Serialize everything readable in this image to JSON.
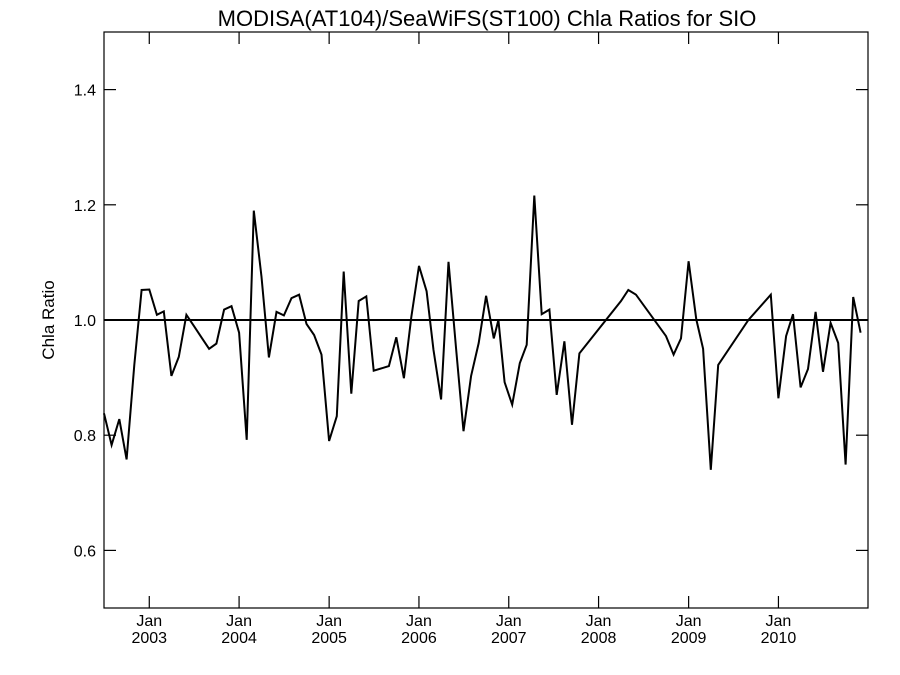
{
  "chart_data": {
    "type": "line",
    "title": "MODISA(AT104)/SeaWiFS(ST100)  Chla Ratios for SIO",
    "xlabel": "",
    "ylabel": "Chla Ratio",
    "xlim": [
      "2002-07-01",
      "2010-12-31"
    ],
    "ylim": [
      0.5,
      1.5
    ],
    "yticks": [
      0.6,
      0.8,
      1.0,
      1.2,
      1.4
    ],
    "ytick_labels": [
      "0.6",
      "0.8",
      "1.0",
      "1.2",
      "1.4"
    ],
    "xticks": [
      {
        "month": "Jan",
        "year": "2003",
        "date": "2003-01-01"
      },
      {
        "month": "Jan",
        "year": "2004",
        "date": "2004-01-01"
      },
      {
        "month": "Jan",
        "year": "2005",
        "date": "2005-01-01"
      },
      {
        "month": "Jan",
        "year": "2006",
        "date": "2006-01-01"
      },
      {
        "month": "Jan",
        "year": "2007",
        "date": "2007-01-01"
      },
      {
        "month": "Jan",
        "year": "2008",
        "date": "2008-01-01"
      },
      {
        "month": "Jan",
        "year": "2009",
        "date": "2009-01-01"
      },
      {
        "month": "Jan",
        "year": "2010",
        "date": "2010-01-01"
      }
    ],
    "reference_line": 1.0,
    "grid": false,
    "series": [
      {
        "color": "#000000",
        "points": [
          [
            "2002-07-01",
            0.838
          ],
          [
            "2002-08-01",
            0.783
          ],
          [
            "2002-09-01",
            0.828
          ],
          [
            "2002-10-01",
            0.758
          ],
          [
            "2002-11-01",
            0.922
          ],
          [
            "2002-12-01",
            1.052
          ],
          [
            "2003-01-01",
            1.053
          ],
          [
            "2003-02-01",
            1.009
          ],
          [
            "2003-03-01",
            1.015
          ],
          [
            "2003-04-01",
            0.903
          ],
          [
            "2003-05-01",
            0.936
          ],
          [
            "2003-06-01",
            1.009
          ],
          [
            "2003-07-01",
            0.99
          ],
          [
            "2003-08-01",
            0.97
          ],
          [
            "2003-09-01",
            0.95
          ],
          [
            "2003-10-01",
            0.959
          ],
          [
            "2003-11-01",
            1.018
          ],
          [
            "2003-12-01",
            1.024
          ],
          [
            "2004-01-01",
            0.978
          ],
          [
            "2004-02-01",
            0.792
          ],
          [
            "2004-03-01",
            1.19
          ],
          [
            "2004-04-01",
            1.075
          ],
          [
            "2004-05-01",
            0.935
          ],
          [
            "2004-06-01",
            1.014
          ],
          [
            "2004-07-01",
            1.008
          ],
          [
            "2004-08-01",
            1.038
          ],
          [
            "2004-09-01",
            1.044
          ],
          [
            "2004-10-01",
            0.993
          ],
          [
            "2004-11-01",
            0.974
          ],
          [
            "2004-12-01",
            0.94
          ],
          [
            "2005-01-01",
            0.79
          ],
          [
            "2005-02-01",
            0.833
          ],
          [
            "2005-03-01",
            1.084
          ],
          [
            "2005-04-01",
            0.872
          ],
          [
            "2005-05-01",
            1.033
          ],
          [
            "2005-06-01",
            1.041
          ],
          [
            "2005-07-01",
            0.912
          ],
          [
            "2005-09-01",
            0.92
          ],
          [
            "2005-10-01",
            0.97
          ],
          [
            "2005-11-01",
            0.899
          ],
          [
            "2005-12-01",
            1.005
          ],
          [
            "2006-01-01",
            1.094
          ],
          [
            "2006-02-01",
            1.05
          ],
          [
            "2006-03-01",
            0.948
          ],
          [
            "2006-04-01",
            0.862
          ],
          [
            "2006-05-01",
            1.101
          ],
          [
            "2006-06-01",
            0.95
          ],
          [
            "2006-07-01",
            0.807
          ],
          [
            "2006-08-01",
            0.903
          ],
          [
            "2006-09-01",
            0.96
          ],
          [
            "2006-10-01",
            1.042
          ],
          [
            "2006-11-01",
            0.968
          ],
          [
            "2006-11-20",
            1.0
          ],
          [
            "2006-12-15",
            0.892
          ],
          [
            "2007-01-15",
            0.853
          ],
          [
            "2007-02-15",
            0.925
          ],
          [
            "2007-03-15",
            0.957
          ],
          [
            "2007-04-15",
            1.216
          ],
          [
            "2007-05-15",
            1.01
          ],
          [
            "2007-06-15",
            1.018
          ],
          [
            "2007-07-15",
            0.87
          ],
          [
            "2007-08-15",
            0.963
          ],
          [
            "2007-09-15",
            0.818
          ],
          [
            "2007-10-15",
            0.942
          ],
          [
            "2008-04-01",
            1.033
          ],
          [
            "2008-05-01",
            1.052
          ],
          [
            "2008-06-01",
            1.044
          ],
          [
            "2008-10-01",
            0.972
          ],
          [
            "2008-11-01",
            0.94
          ],
          [
            "2008-12-01",
            0.968
          ],
          [
            "2009-01-01",
            1.102
          ],
          [
            "2009-02-01",
            1.001
          ],
          [
            "2009-03-01",
            0.95
          ],
          [
            "2009-04-01",
            0.74
          ],
          [
            "2009-05-01",
            0.922
          ],
          [
            "2009-09-01",
            1.0
          ],
          [
            "2009-12-01",
            1.044
          ],
          [
            "2010-01-01",
            0.864
          ],
          [
            "2010-02-01",
            0.972
          ],
          [
            "2010-03-01",
            1.01
          ],
          [
            "2010-04-01",
            0.883
          ],
          [
            "2010-05-01",
            0.915
          ],
          [
            "2010-06-01",
            1.014
          ],
          [
            "2010-07-01",
            0.91
          ],
          [
            "2010-08-01",
            0.995
          ],
          [
            "2010-09-01",
            0.96
          ],
          [
            "2010-10-01",
            0.749
          ],
          [
            "2010-11-01",
            1.04
          ],
          [
            "2010-12-01",
            0.978
          ]
        ]
      }
    ]
  }
}
